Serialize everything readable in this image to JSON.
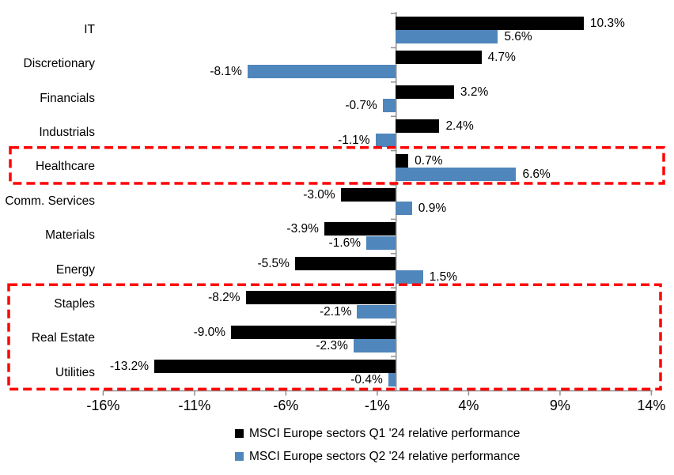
{
  "chart_data": {
    "type": "bar",
    "orientation": "horizontal",
    "title": "",
    "xlabel": "",
    "ylabel": "",
    "grid": false,
    "categories": [
      "IT",
      "Discretionary",
      "Financials",
      "Industrials",
      "Healthcare",
      "Comm. Services",
      "Materials",
      "Energy",
      "Staples",
      "Real Estate",
      "Utilities"
    ],
    "series": [
      {
        "name": "MSCI Europe sectors Q1 '24 relative performance",
        "color": "#000000",
        "values": [
          10.3,
          4.7,
          3.2,
          2.4,
          0.7,
          -3.0,
          -3.9,
          -5.5,
          -8.2,
          -9.0,
          -13.2
        ],
        "labels": [
          "10.3%",
          "4.7%",
          "3.2%",
          "2.4%",
          "0.7%",
          "-3.0%",
          "-3.9%",
          "-5.5%",
          "-8.2%",
          "-9.0%",
          "-13.2%"
        ]
      },
      {
        "name": "MSCI Europe sectors Q2 '24 relative performance",
        "color": "#4F86BB",
        "values": [
          5.6,
          -8.1,
          -0.7,
          -1.1,
          6.6,
          0.9,
          -1.6,
          1.5,
          -2.1,
          -2.3,
          -0.4
        ],
        "labels": [
          "5.6%",
          "-8.1%",
          "-0.7%",
          "-1.1%",
          "6.6%",
          "0.9%",
          "-1.6%",
          "1.5%",
          "-2.1%",
          "-2.3%",
          "-0.4%"
        ]
      }
    ],
    "x_axis": {
      "min": -16,
      "max": 14,
      "tick_values": [
        -16,
        -11,
        -6,
        -1,
        4,
        9,
        14
      ],
      "tick_labels": [
        "-16%",
        "-11%",
        "-6%",
        "-1%",
        "4%",
        "9%",
        "14%"
      ]
    },
    "axis_color": "#919191",
    "highlights": [
      {
        "label": "Healthcare",
        "row_start": 4,
        "row_end": 4,
        "color": "#FF0000"
      },
      {
        "label": "Staples, Real Estate, Utilities",
        "row_start": 8,
        "row_end": 10,
        "color": "#FF0000"
      }
    ],
    "legend": {
      "position": "bottom",
      "items": [
        {
          "label": "MSCI Europe sectors Q1 '24 relative performance",
          "color": "#000000"
        },
        {
          "label": "MSCI Europe sectors Q2 '24 relative performance",
          "color": "#4F86BB"
        }
      ]
    }
  }
}
